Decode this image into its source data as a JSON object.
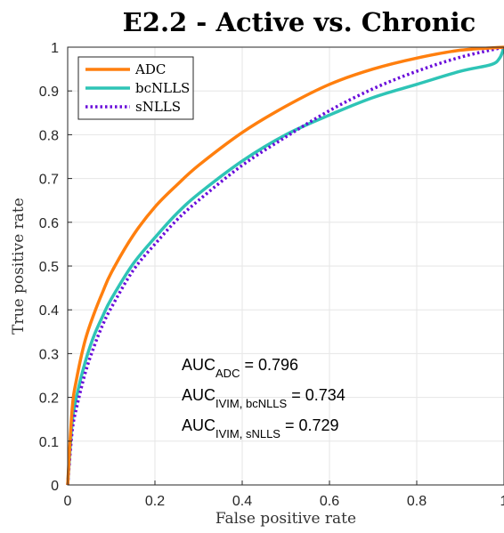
{
  "chart_data": {
    "type": "line",
    "title": "E2.2 - Active vs. Chronic",
    "xlabel": "False positive rate",
    "ylabel": "True positive rate",
    "xlim": [
      0,
      1
    ],
    "ylim": [
      0,
      1
    ],
    "grid": true,
    "legend_position": "top-left",
    "x_ticks": [
      "0",
      "0.2",
      "0.4",
      "0.6",
      "0.8",
      "1"
    ],
    "y_ticks": [
      "0",
      "0.1",
      "0.2",
      "0.3",
      "0.4",
      "0.5",
      "0.6",
      "0.7",
      "0.8",
      "0.9",
      "1"
    ],
    "series": [
      {
        "name": "ADC",
        "color": "#ff7f0e",
        "style": "solid",
        "x": [
          0,
          0.01,
          0.02,
          0.04,
          0.06,
          0.08,
          0.1,
          0.15,
          0.2,
          0.25,
          0.3,
          0.4,
          0.5,
          0.6,
          0.7,
          0.8,
          0.9,
          1.0
        ],
        "y": [
          0,
          0.17,
          0.24,
          0.33,
          0.39,
          0.44,
          0.485,
          0.57,
          0.635,
          0.685,
          0.73,
          0.805,
          0.865,
          0.915,
          0.95,
          0.975,
          0.993,
          1.0
        ]
      },
      {
        "name": "bcNLLS",
        "color": "#2ec4b6",
        "style": "solid",
        "x": [
          0,
          0.01,
          0.02,
          0.04,
          0.06,
          0.08,
          0.1,
          0.15,
          0.2,
          0.25,
          0.3,
          0.4,
          0.5,
          0.6,
          0.7,
          0.8,
          0.9,
          0.97,
          0.99,
          1.0
        ],
        "y": [
          0,
          0.14,
          0.2,
          0.28,
          0.34,
          0.385,
          0.425,
          0.505,
          0.565,
          0.62,
          0.665,
          0.74,
          0.8,
          0.845,
          0.885,
          0.915,
          0.945,
          0.96,
          0.975,
          1.0
        ]
      },
      {
        "name": "sNLLS",
        "color": "#6a0dda",
        "style": "dotted",
        "x": [
          0,
          0.01,
          0.02,
          0.04,
          0.06,
          0.08,
          0.1,
          0.15,
          0.2,
          0.25,
          0.3,
          0.4,
          0.5,
          0.6,
          0.7,
          0.8,
          0.9,
          1.0
        ],
        "y": [
          0,
          0.12,
          0.175,
          0.255,
          0.315,
          0.365,
          0.405,
          0.49,
          0.55,
          0.605,
          0.65,
          0.73,
          0.795,
          0.855,
          0.905,
          0.945,
          0.977,
          1.0
        ]
      }
    ],
    "annotations": [
      {
        "main": "AUC",
        "sub": "ADC",
        "value": " = 0.796"
      },
      {
        "main": "AUC",
        "sub": "IVIM, bcNLLS",
        "value": " = 0.734"
      },
      {
        "main": "AUC",
        "sub": "IVIM, sNLLS",
        "value": " = 0.729"
      }
    ]
  }
}
